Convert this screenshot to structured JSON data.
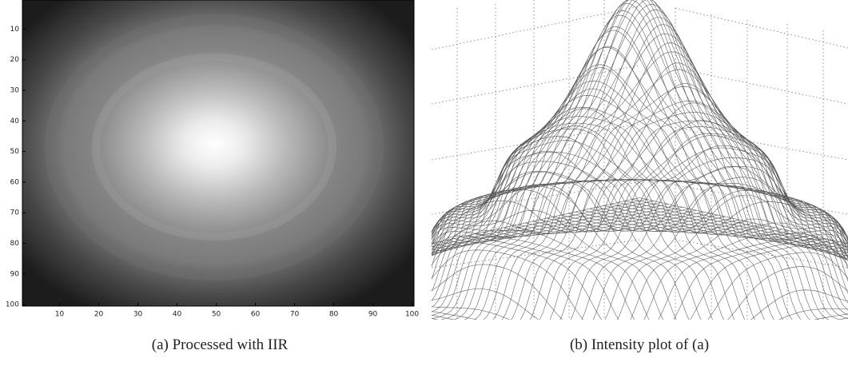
{
  "chart_data": [
    {
      "type": "image",
      "caption": "(a) Processed with IIR",
      "xlim": [
        0.5,
        100.5
      ],
      "ylim": [
        0.5,
        100.5
      ],
      "xticks": [
        10,
        20,
        30,
        40,
        50,
        60,
        70,
        80,
        90,
        100
      ],
      "yticks": [
        10,
        20,
        30,
        40,
        50,
        60,
        70,
        80,
        90,
        100
      ]
    },
    {
      "type": "surface",
      "caption": "(b) Intensity plot of (a)"
    }
  ]
}
